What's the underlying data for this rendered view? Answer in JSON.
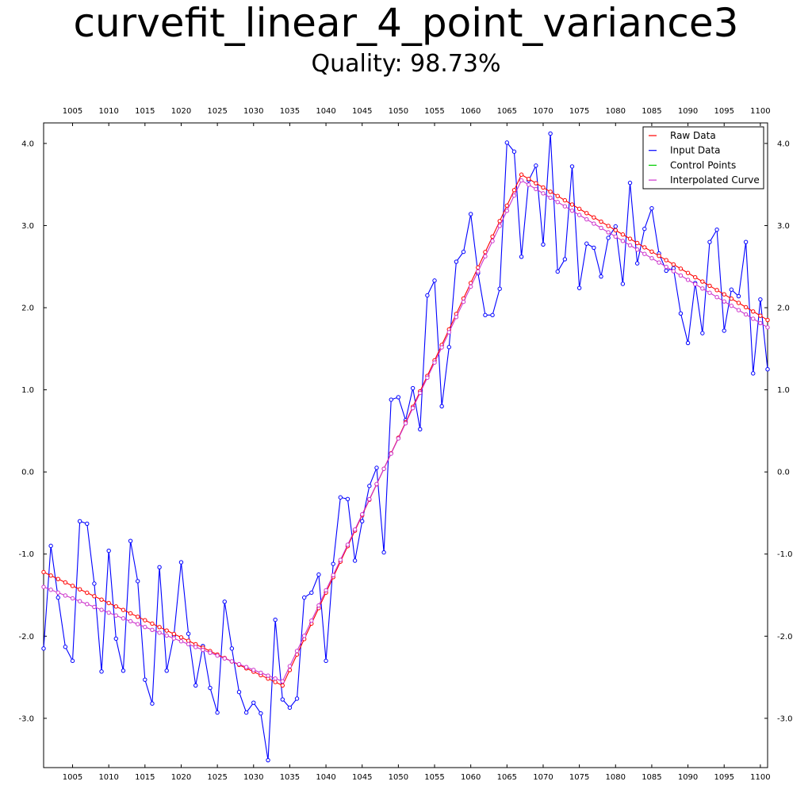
{
  "chart_data": {
    "type": "line",
    "title": "curvefit_linear_4_point_variance3",
    "subtitle": "Quality: 98.73%",
    "xlabel": "",
    "ylabel": "",
    "xlim": [
      1001,
      1101
    ],
    "ylim": [
      -3.6,
      4.25
    ],
    "grid": false,
    "legend_position": "top-right",
    "x_ticks": [
      1005,
      1010,
      1015,
      1020,
      1025,
      1030,
      1035,
      1040,
      1045,
      1050,
      1055,
      1060,
      1065,
      1070,
      1075,
      1080,
      1085,
      1090,
      1095,
      1100
    ],
    "y_ticks": [
      -3.0,
      -2.0,
      -1.0,
      0.0,
      1.0,
      2.0,
      3.0,
      4.0
    ],
    "x_tick_labels": [
      "1005",
      "1010",
      "1015",
      "1020",
      "1025",
      "1030",
      "1035",
      "1040",
      "1045",
      "1050",
      "1055",
      "1060",
      "1065",
      "1070",
      "1075",
      "1080",
      "1085",
      "1090",
      "1095",
      "1100"
    ],
    "y_tick_labels": [
      "-3.0",
      "-2.0",
      "-1.0",
      "0.0",
      "1.0",
      "2.0",
      "3.0",
      "4.0"
    ],
    "series": [
      {
        "name": "Raw Data",
        "color": "#ff0000",
        "breakpoints": {
          "x": [
            1001,
            1034,
            1067,
            1101
          ],
          "y": [
            -1.22,
            -2.6,
            3.62,
            1.85
          ]
        }
      },
      {
        "name": "Input Data",
        "color": "#0000ff",
        "x_start": 1001,
        "x_step": 1,
        "y": [
          -2.15,
          -0.9,
          -1.53,
          -2.13,
          -2.3,
          -0.6,
          -0.63,
          -1.36,
          -2.43,
          -0.96,
          -2.03,
          -2.42,
          -0.84,
          -1.33,
          -2.53,
          -2.82,
          -1.16,
          -2.42,
          -1.99,
          -1.1,
          -1.97,
          -2.6,
          -2.12,
          -2.63,
          -2.93,
          -1.58,
          -2.15,
          -2.68,
          -2.93,
          -2.81,
          -2.94,
          -3.51,
          -1.8,
          -2.77,
          -2.87,
          -2.76,
          -1.53,
          -1.47,
          -1.25,
          -2.3,
          -1.12,
          -0.31,
          -0.33,
          -1.08,
          -0.6,
          -0.17,
          0.05,
          -0.98,
          0.88,
          0.91,
          0.63,
          1.02,
          0.52,
          2.15,
          2.33,
          0.8,
          1.52,
          2.56,
          2.68,
          3.14,
          2.42,
          1.91,
          1.91,
          2.23,
          4.01,
          3.9,
          2.62,
          3.55,
          3.73,
          2.77,
          4.12,
          2.44,
          2.59,
          3.72,
          2.24,
          2.78,
          2.73,
          2.38,
          2.85,
          2.99,
          2.29,
          3.52,
          2.54,
          2.96,
          3.21,
          2.66,
          2.45,
          2.48,
          1.93,
          1.57,
          2.3,
          1.69,
          2.8,
          2.95,
          1.72,
          2.22,
          2.14,
          2.8,
          1.2,
          2.1,
          1.25
        ]
      },
      {
        "name": "Control Points",
        "color": "#00cc00",
        "points": []
      },
      {
        "name": "Interpolated Curve",
        "color": "#cc33cc",
        "breakpoints": {
          "x": [
            1001,
            1034,
            1067,
            1101
          ],
          "y": [
            -1.4,
            -2.55,
            3.55,
            1.76
          ]
        }
      }
    ]
  }
}
